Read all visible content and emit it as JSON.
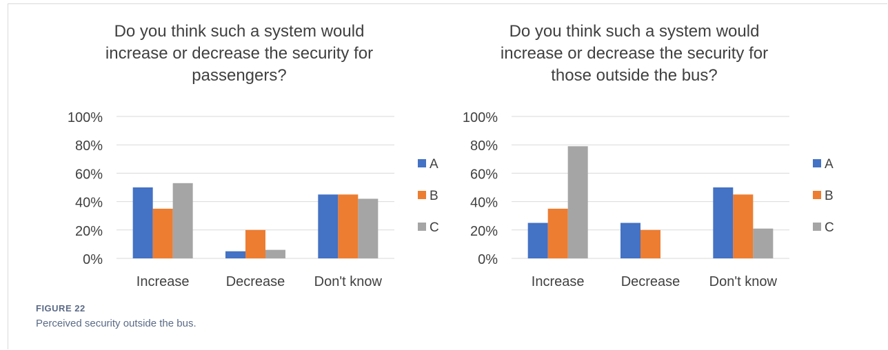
{
  "figure": {
    "label": "FIGURE 22",
    "caption": "Perceived security outside the bus."
  },
  "colors": {
    "A": "#4472c4",
    "B": "#ed7d31",
    "C": "#a5a5a5",
    "grid": "#d9d9d9",
    "text": "#404040"
  },
  "chart_data": [
    {
      "type": "bar",
      "title": "Do you think such a system would\nincrease or decrease the security for\npassengers?",
      "categories": [
        "Increase",
        "Decrease",
        "Don't know"
      ],
      "series": [
        {
          "name": "A",
          "values": [
            50,
            5,
            45
          ]
        },
        {
          "name": "B",
          "values": [
            35,
            20,
            45
          ]
        },
        {
          "name": "C",
          "values": [
            53,
            6,
            42
          ]
        }
      ],
      "ylim": [
        0,
        100
      ],
      "yticks": [
        "0%",
        "20%",
        "40%",
        "60%",
        "80%",
        "100%"
      ],
      "grid": true,
      "legend": "right"
    },
    {
      "type": "bar",
      "title": "Do you think such a system would\nincrease or decrease the security for\nthose outside the bus?",
      "categories": [
        "Increase",
        "Decrease",
        "Don't know"
      ],
      "series": [
        {
          "name": "A",
          "values": [
            25,
            25,
            50
          ]
        },
        {
          "name": "B",
          "values": [
            35,
            20,
            45
          ]
        },
        {
          "name": "C",
          "values": [
            79,
            0,
            21
          ]
        }
      ],
      "ylim": [
        0,
        100
      ],
      "yticks": [
        "0%",
        "20%",
        "40%",
        "60%",
        "80%",
        "100%"
      ],
      "grid": true,
      "legend": "right"
    }
  ]
}
